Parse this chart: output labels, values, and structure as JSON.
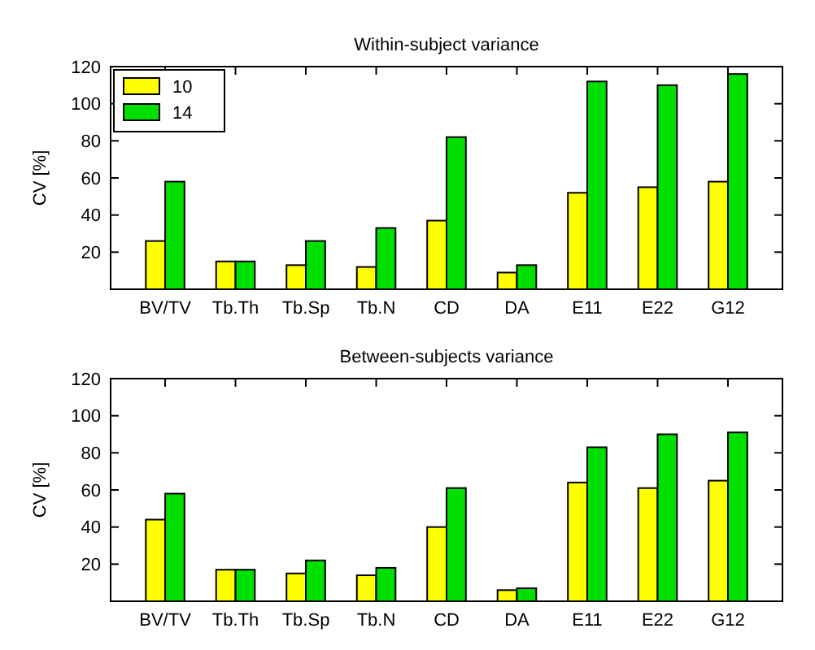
{
  "chart_data": [
    {
      "type": "bar",
      "title": "Within-subject variance",
      "ylabel": "CV [%]",
      "categories": [
        "BV/TV",
        "Tb.Th",
        "Tb.Sp",
        "Tb.N",
        "CD",
        "DA",
        "E11",
        "E22",
        "G12"
      ],
      "series": [
        {
          "name": "10",
          "color": "#ffff00",
          "values": [
            26,
            15,
            13,
            12,
            37,
            9,
            52,
            55,
            58
          ]
        },
        {
          "name": "14",
          "color": "#00e000",
          "values": [
            58,
            15,
            26,
            33,
            82,
            13,
            112,
            110,
            116
          ]
        }
      ],
      "ylim": [
        0,
        120
      ],
      "yticks": [
        {
          "value": 0,
          "label": null
        },
        20,
        40,
        60,
        80,
        100,
        120
      ],
      "legend": "top left"
    },
    {
      "type": "bar",
      "title": "Between-subjects variance",
      "ylabel": "CV [%]",
      "categories": [
        "BV/TV",
        "Tb.Th",
        "Tb.Sp",
        "Tb.N",
        "CD",
        "DA",
        "E11",
        "E22",
        "G12"
      ],
      "series": [
        {
          "color": "#ffff00",
          "values": [
            44,
            17,
            15,
            14,
            40,
            6,
            64,
            61,
            65
          ]
        },
        {
          "color": "#00e000",
          "values": [
            58,
            17,
            22,
            18,
            61,
            7,
            83,
            90,
            91
          ]
        }
      ],
      "ylim": [
        0,
        120
      ],
      "yticks": [
        {
          "value": 0,
          "label": null
        },
        20,
        40,
        60,
        80,
        100,
        120
      ]
    }
  ]
}
